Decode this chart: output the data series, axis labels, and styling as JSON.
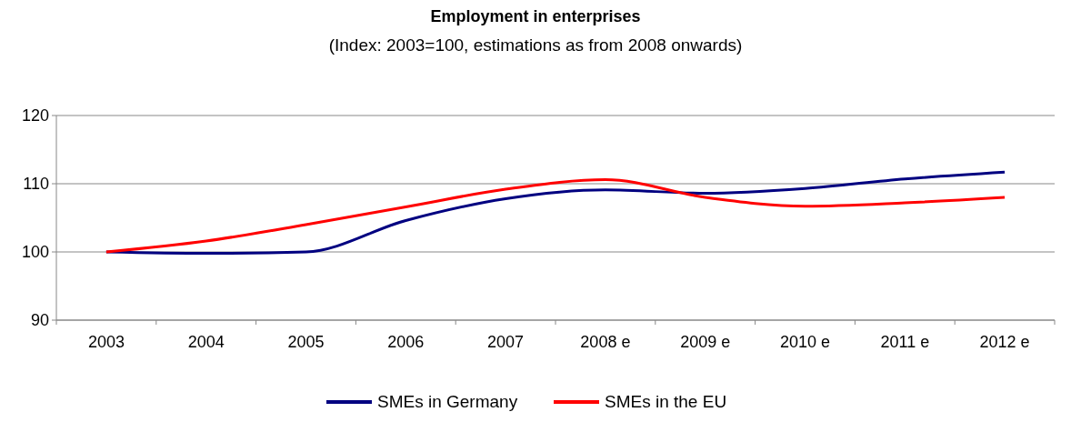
{
  "chart_data": {
    "type": "line",
    "title": "Employment in enterprises",
    "subtitle": "(Index: 2003=100, estimations as from 2008 onwards)",
    "categories": [
      "2003",
      "2004",
      "2005",
      "2006",
      "2007",
      "2008 e",
      "2009 e",
      "2010 e",
      "2011 e",
      "2012 e"
    ],
    "series": [
      {
        "name": "SMEs in Germany",
        "color": "#000080",
        "values": [
          100,
          99.8,
          100,
          104.6,
          107.8,
          109.1,
          108.6,
          109.3,
          110.7,
          111.7
        ]
      },
      {
        "name": "SMEs in the EU",
        "color": "#ff0000",
        "values": [
          100,
          101.6,
          104,
          106.6,
          109.2,
          110.6,
          108.0,
          106.7,
          107.2,
          108.0
        ]
      }
    ],
    "ylim": [
      90,
      120
    ],
    "yticks": [
      90,
      100,
      110,
      120
    ],
    "grid": "y",
    "legend": "bottom",
    "marker": "none",
    "line_style": "solid"
  }
}
